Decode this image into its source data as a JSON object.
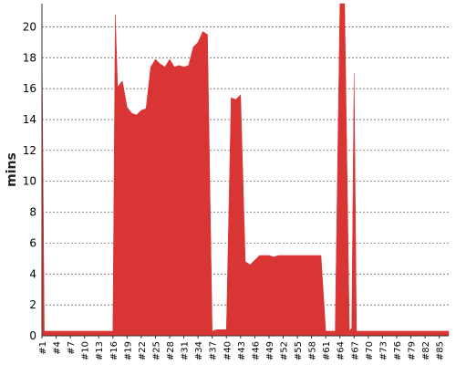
{
  "chart_data": {
    "type": "area",
    "title": "",
    "xlabel": "",
    "ylabel": "mins",
    "ylim": [
      0,
      21.5
    ],
    "xlim": [
      1,
      87
    ],
    "grid": true,
    "legend": "none",
    "color": "#d93535",
    "y_ticks": [
      0,
      2,
      4,
      6,
      8,
      10,
      12,
      14,
      16,
      18,
      20
    ],
    "x_ticks": [
      "#1",
      "#4",
      "#7",
      "#10",
      "#13",
      "#16",
      "#19",
      "#22",
      "#25",
      "#28",
      "#31",
      "#34",
      "#37",
      "#40",
      "#43",
      "#46",
      "#49",
      "#52",
      "#55",
      "#58",
      "#61",
      "#64",
      "#67",
      "#70",
      "#73",
      "#76",
      "#79",
      "#82",
      "#85"
    ],
    "series": [
      {
        "x": [
          1,
          1.5,
          2,
          3,
          4,
          5,
          6,
          7,
          8,
          9,
          10,
          11,
          12,
          13,
          14,
          15,
          16,
          16.5,
          17,
          18,
          19,
          20,
          21,
          22,
          23,
          24,
          25,
          26,
          27,
          28,
          29,
          30,
          31,
          32,
          33,
          34,
          35,
          36,
          37,
          38,
          39,
          40,
          41,
          42,
          43,
          44,
          45,
          46,
          47,
          48,
          49,
          50,
          51,
          52,
          53,
          54,
          55,
          56,
          57,
          58,
          59,
          60,
          61,
          62,
          63,
          64,
          64.2,
          65,
          66,
          66.5,
          67,
          67.5,
          68,
          69,
          70,
          71,
          72,
          73,
          74,
          75,
          76,
          77,
          78,
          79,
          80,
          81,
          82,
          83,
          84,
          85,
          86,
          87
        ],
        "values": [
          19.2,
          0.3,
          0.3,
          0.3,
          0.3,
          0.3,
          0.3,
          0.3,
          0.3,
          0.3,
          0.3,
          0.3,
          0.3,
          0.3,
          0.3,
          0.3,
          0.3,
          20.8,
          16.1,
          16.5,
          14.8,
          14.4,
          14.3,
          14.6,
          14.7,
          17.4,
          17.9,
          17.6,
          17.4,
          17.9,
          17.4,
          17.5,
          17.4,
          17.5,
          18.7,
          19.0,
          19.7,
          19.5,
          0.3,
          0.4,
          0.4,
          0.4,
          15.4,
          15.3,
          15.6,
          4.8,
          4.6,
          4.9,
          5.2,
          5.2,
          5.2,
          5.1,
          5.2,
          5.2,
          5.2,
          5.2,
          5.2,
          5.2,
          5.2,
          5.2,
          5.2,
          5.2,
          0.3,
          0.3,
          0.3,
          21.5,
          21.5,
          21.5,
          0.3,
          0.5,
          17.0,
          0.3,
          0.3,
          0.3,
          0.3,
          0.3,
          0.3,
          0.3,
          0.3,
          0.3,
          0.3,
          0.3,
          0.3,
          0.3,
          0.3,
          0.3,
          0.3,
          0.3,
          0.3,
          0.3,
          0.3,
          0.3
        ]
      }
    ]
  }
}
